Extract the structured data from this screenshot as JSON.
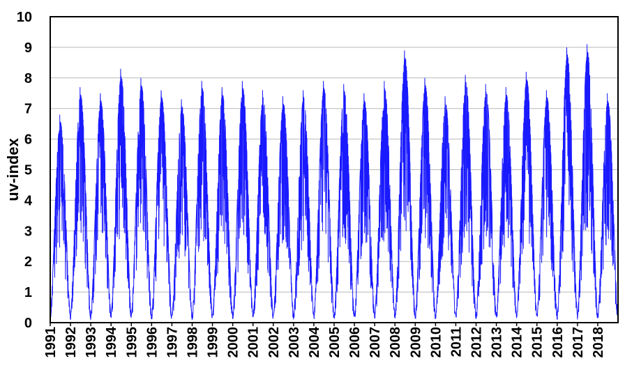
{
  "chart_data": {
    "type": "line",
    "title": "",
    "xlabel": "",
    "ylabel": "uv-index",
    "ylim": [
      0,
      10
    ],
    "xlim": [
      1991,
      2019
    ],
    "grid": "horizontal",
    "legend": "none",
    "line_color": "#1a1aff",
    "y_ticks": [
      "0",
      "1",
      "2",
      "3",
      "4",
      "5",
      "6",
      "7",
      "8",
      "9",
      "10"
    ],
    "x_ticks": [
      "1991",
      "1992",
      "1993",
      "1994",
      "1995",
      "1996",
      "1997",
      "1998",
      "1999",
      "2000",
      "2001",
      "2002",
      "2003",
      "2004",
      "2005",
      "2006",
      "2007",
      "2008",
      "2009",
      "2010",
      "2011",
      "2012",
      "2013",
      "2014",
      "2015",
      "2016",
      "2017",
      "2018"
    ],
    "series": [
      {
        "x": [
          1991,
          1992,
          1993,
          1994,
          1995,
          1996,
          1997,
          1998,
          1999,
          2000,
          2001,
          2002,
          2003,
          2004,
          2005,
          2006,
          2007,
          2008,
          2009,
          2010,
          2011,
          2012,
          2013,
          2014,
          2015,
          2016,
          2017,
          2018
        ],
        "annual_max": [
          6.8,
          7.7,
          7.5,
          8.3,
          8.0,
          7.6,
          7.3,
          7.9,
          7.7,
          7.9,
          7.6,
          7.4,
          7.6,
          7.9,
          7.8,
          7.5,
          7.9,
          8.9,
          8.0,
          7.4,
          8.1,
          7.8,
          7.7,
          8.2,
          7.6,
          9.0,
          9.1,
          7.5
        ],
        "annual_min": 0
      }
    ]
  }
}
